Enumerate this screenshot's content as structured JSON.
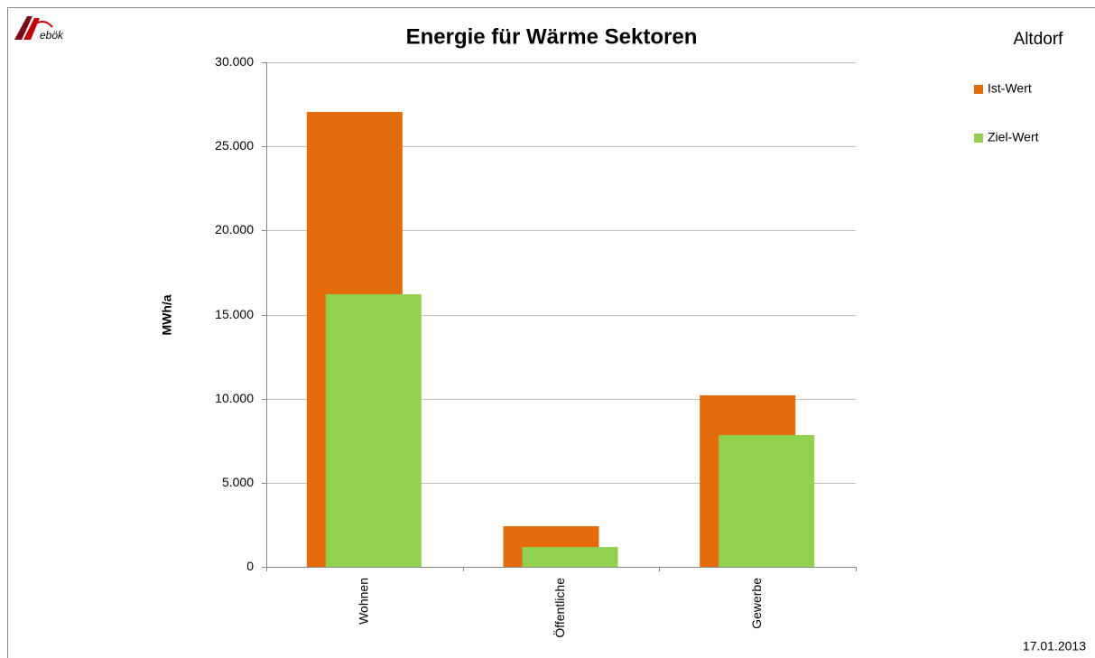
{
  "chart_data": {
    "type": "bar",
    "logo": "ebök",
    "title": "Energie für Wärme Sektoren",
    "subtitle": "Altdorf",
    "date": "17.01.2013",
    "ylabel": "MWh/a",
    "categories": [
      "Wohnen",
      "Öffentliche",
      "Gewerbe"
    ],
    "series": [
      {
        "name": "Ist-Wert",
        "color": "#e46c0a",
        "values": [
          27050,
          2415,
          10200
        ]
      },
      {
        "name": "Ziel-Wert",
        "color": "#92d050",
        "values": [
          16210,
          1180,
          7835
        ]
      }
    ],
    "ylim": [
      0,
      30000
    ],
    "yticks": [
      0,
      {
        "value": 5000,
        "label": "5.000"
      },
      {
        "value": 10000,
        "label": "10.000"
      },
      {
        "value": 15000,
        "label": "15.000"
      },
      {
        "value": 20000,
        "label": "20.000"
      },
      {
        "value": 25000,
        "label": "25.000"
      },
      {
        "value": 30000,
        "label": "30.000"
      }
    ],
    "grid": true,
    "legend": "right"
  }
}
